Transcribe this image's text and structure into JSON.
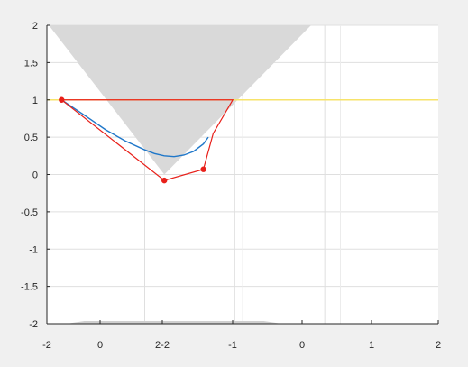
{
  "chart_data": {
    "type": "line",
    "title": "",
    "xlabel": "",
    "ylabel": "",
    "grid": true,
    "legend": "none",
    "xlim": [
      -2,
      2
    ],
    "ylim": [
      -2,
      2
    ],
    "x_tick_labels": [
      "-2",
      "0",
      "2-2",
      "-1",
      "0",
      "1",
      "2"
    ],
    "y_ticks": [
      2,
      1.5,
      1,
      0.5,
      0,
      -0.5,
      -1,
      -1.5,
      -2
    ],
    "y_tick_labels": [
      "2",
      "1.5",
      "1",
      "0.5",
      "0",
      "-0.5",
      "-1",
      "-1.5",
      "-2"
    ],
    "colors": {
      "background": "#f0f0f0",
      "plot_area": "#ffffff",
      "cone": "#d9d9d9",
      "constraint_line": "#f7e36a",
      "control_polygon": "#e8201a",
      "curve": "#1f77c9",
      "axis": "#262626"
    },
    "cone_region": {
      "apex": [
        -0.8,
        0
      ],
      "top_left": [
        -1.98,
        2
      ],
      "top_right": [
        0.7,
        2
      ]
    },
    "constraint_line": {
      "x": [
        -2,
        2
      ],
      "y": [
        1,
        1
      ]
    },
    "control_polygon": {
      "x": [
        -1.85,
        -0.8,
        -0.4,
        -0.3,
        -0.1
      ],
      "y": [
        1.0,
        -0.08,
        0.07,
        0.55,
        1.0
      ],
      "markers": [
        [
          -1.85,
          1.0
        ],
        [
          -0.8,
          -0.08
        ],
        [
          -0.4,
          0.07
        ]
      ]
    },
    "curve": {
      "x": [
        -1.85,
        -1.6,
        -1.4,
        -1.2,
        -1.0,
        -0.9,
        -0.8,
        -0.7,
        -0.6,
        -0.5,
        -0.4,
        -0.35
      ],
      "y": [
        1.0,
        0.78,
        0.6,
        0.45,
        0.33,
        0.28,
        0.25,
        0.24,
        0.26,
        0.31,
        0.41,
        0.5
      ]
    },
    "baseline_sliver": {
      "x": [
        -1.8,
        0.4
      ],
      "y": -2
    }
  }
}
